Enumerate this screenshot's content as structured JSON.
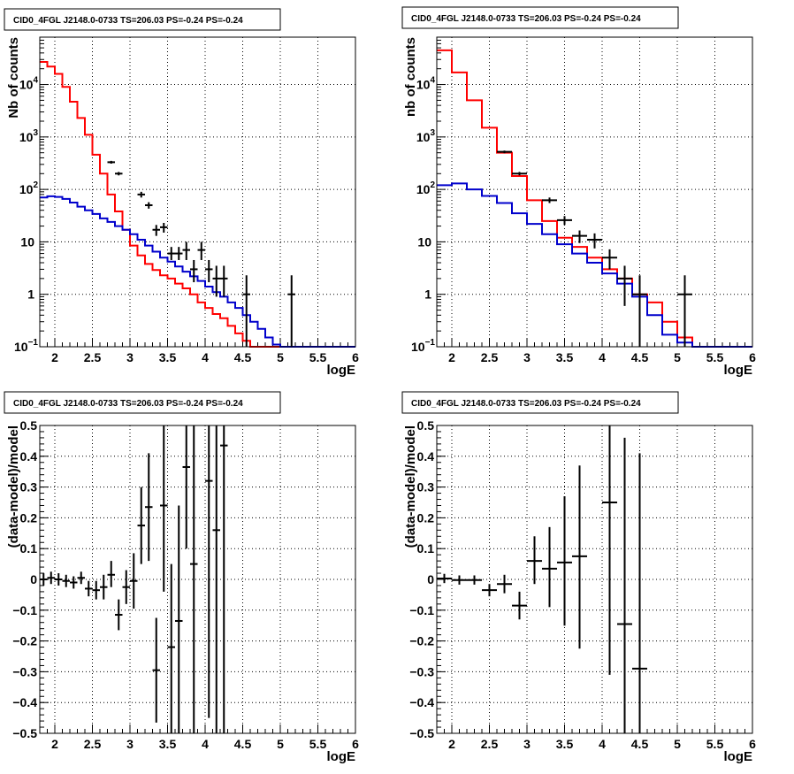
{
  "chart_data": [
    {
      "type": "line",
      "title": "CID0_4FGL J2148.0-0733 TS=206.03 PS=-0.24 PS=-0.24",
      "xlabel": "logE",
      "ylabel": "Nb of counts",
      "xlim": [
        1.8,
        6
      ],
      "ylim": [
        0.1,
        80000
      ],
      "yscale": "log",
      "grid": true,
      "xticks": [
        "2",
        "2.5",
        "3",
        "3.5",
        "4",
        "4.5",
        "5",
        "5.5",
        "6"
      ],
      "yticks": [
        {
          "v": 0.1,
          "base": "10",
          "exp": "−1"
        },
        {
          "v": 1,
          "base": "1",
          "exp": ""
        },
        {
          "v": 10,
          "base": "10",
          "exp": ""
        },
        {
          "v": 100,
          "base": "10",
          "exp": "2"
        },
        {
          "v": 1000,
          "base": "10",
          "exp": "3"
        },
        {
          "v": 10000,
          "base": "10",
          "exp": "4"
        }
      ],
      "bin_edges": [
        1.8,
        1.9,
        2.0,
        2.1,
        2.2,
        2.3,
        2.4,
        2.5,
        2.6,
        2.7,
        2.8,
        2.9,
        3.0,
        3.1,
        3.2,
        3.3,
        3.4,
        3.5,
        3.6,
        3.7,
        3.8,
        3.9,
        4.0,
        4.1,
        4.2,
        4.3,
        4.4,
        4.5,
        4.6,
        4.7,
        4.8,
        4.9,
        5.0,
        5.1,
        5.2,
        5.3,
        5.4,
        5.5,
        5.6,
        5.7,
        5.8,
        5.9,
        6.0
      ],
      "series": [
        {
          "name": "",
          "color": "#ff0000",
          "values": [
            27000,
            22000,
            16000,
            9000,
            4700,
            2300,
            1100,
            460,
            200,
            80,
            38,
            17,
            8.5,
            5.5,
            3.8,
            2.9,
            2.3,
            2.0,
            1.6,
            1.3,
            1.0,
            0.7,
            0.55,
            0.42,
            0.35,
            0.25,
            0.18,
            0.13,
            0.1,
            0.1,
            0.1,
            0.1,
            0.1,
            0.1,
            0.1,
            0.1,
            0.1,
            0.1,
            0.1,
            0.1,
            0.1,
            0.1
          ]
        },
        {
          "name": "",
          "color": "#0000cc",
          "values": [
            70,
            74,
            72,
            66,
            56,
            47,
            40,
            34,
            28,
            24,
            20,
            17,
            14,
            11,
            8.5,
            6.5,
            5.0,
            4.2,
            3.4,
            2.7,
            2.2,
            1.8,
            1.4,
            1.1,
            0.9,
            0.7,
            0.55,
            0.4,
            0.3,
            0.22,
            0.15,
            0.11,
            0.1,
            0.1,
            0.1,
            0.1,
            0.1,
            0.1,
            0.1,
            0.1,
            0.1,
            0.1
          ]
        }
      ],
      "points": [
        {
          "x": 2.75,
          "y": 330,
          "xerr": 0.05,
          "ylo": 310,
          "yhi": 350
        },
        {
          "x": 2.85,
          "y": 200,
          "xerr": 0.05,
          "ylo": 185,
          "yhi": 215
        },
        {
          "x": 3.15,
          "y": 80,
          "xerr": 0.05,
          "ylo": 70,
          "yhi": 90
        },
        {
          "x": 3.25,
          "y": 50,
          "xerr": 0.05,
          "ylo": 43,
          "yhi": 57
        },
        {
          "x": 3.35,
          "y": 17,
          "xerr": 0.05,
          "ylo": 13,
          "yhi": 21
        },
        {
          "x": 3.45,
          "y": 19,
          "xerr": 0.05,
          "ylo": 15,
          "yhi": 23
        },
        {
          "x": 3.55,
          "y": 6,
          "xerr": 0.05,
          "ylo": 4.5,
          "yhi": 8
        },
        {
          "x": 3.65,
          "y": 6,
          "xerr": 0.05,
          "ylo": 4.5,
          "yhi": 8
        },
        {
          "x": 3.75,
          "y": 7,
          "xerr": 0.05,
          "ylo": 4.5,
          "yhi": 10
        },
        {
          "x": 3.85,
          "y": 3,
          "xerr": 0.05,
          "ylo": 1.7,
          "yhi": 4.5
        },
        {
          "x": 3.95,
          "y": 7,
          "xerr": 0.05,
          "ylo": 4.5,
          "yhi": 10
        },
        {
          "x": 4.05,
          "y": 3,
          "xerr": 0.05,
          "ylo": 1.7,
          "yhi": 4.5
        },
        {
          "x": 4.15,
          "y": 2,
          "xerr": 0.05,
          "ylo": 0.9,
          "yhi": 3.5
        },
        {
          "x": 4.25,
          "y": 2,
          "xerr": 0.05,
          "ylo": 0.9,
          "yhi": 3.5
        },
        {
          "x": 4.55,
          "y": 1,
          "xerr": 0.05,
          "ylo": 0.1,
          "yhi": 2.3
        },
        {
          "x": 5.15,
          "y": 1,
          "xerr": 0.05,
          "ylo": 0.1,
          "yhi": 2.3
        }
      ]
    },
    {
      "type": "line",
      "title": "CID0_4FGL J2148.0-0733 TS=206.03 PS=-0.24 PS=-0.24",
      "xlabel": "logE",
      "ylabel": "nb of counts",
      "xlim": [
        1.8,
        6
      ],
      "ylim": [
        0.1,
        80000
      ],
      "yscale": "log",
      "grid": true,
      "xticks": [
        "2",
        "2.5",
        "3",
        "3.5",
        "4",
        "4.5",
        "5",
        "5.5",
        "6"
      ],
      "yticks": [
        {
          "v": 0.1,
          "base": "10",
          "exp": "−1"
        },
        {
          "v": 1,
          "base": "1",
          "exp": ""
        },
        {
          "v": 10,
          "base": "10",
          "exp": ""
        },
        {
          "v": 100,
          "base": "10",
          "exp": "2"
        },
        {
          "v": 1000,
          "base": "10",
          "exp": "3"
        },
        {
          "v": 10000,
          "base": "10",
          "exp": "4"
        }
      ],
      "bin_edges": [
        1.8,
        2.0,
        2.2,
        2.4,
        2.6,
        2.8,
        3.0,
        3.2,
        3.4,
        3.6,
        3.8,
        4.0,
        4.2,
        4.4,
        4.6,
        4.8,
        5.0,
        5.2,
        5.4,
        5.6,
        5.8,
        6.0
      ],
      "series": [
        {
          "name": "",
          "color": "#ff0000",
          "values": [
            45000,
            17000,
            5000,
            1500,
            500,
            180,
            62,
            25,
            12,
            8,
            5,
            3,
            2,
            1,
            0.7,
            0.3,
            0.15,
            0.1,
            0.1,
            0.1,
            0.1
          ]
        },
        {
          "name": "",
          "color": "#0000cc",
          "values": [
            120,
            130,
            100,
            75,
            55,
            35,
            22,
            14,
            9,
            6,
            4,
            2.5,
            1.6,
            0.9,
            0.4,
            0.17,
            0.12,
            0.1,
            0.1,
            0.1,
            0.1
          ]
        }
      ],
      "points": [
        {
          "x": 2.7,
          "y": 520,
          "xerr": 0.1,
          "ylo": 490,
          "yhi": 550
        },
        {
          "x": 2.9,
          "y": 200,
          "xerr": 0.1,
          "ylo": 185,
          "yhi": 215
        },
        {
          "x": 3.3,
          "y": 62,
          "xerr": 0.1,
          "ylo": 55,
          "yhi": 70
        },
        {
          "x": 3.5,
          "y": 26,
          "xerr": 0.1,
          "ylo": 21,
          "yhi": 31
        },
        {
          "x": 3.7,
          "y": 13,
          "xerr": 0.1,
          "ylo": 9.5,
          "yhi": 16.5
        },
        {
          "x": 3.9,
          "y": 11,
          "xerr": 0.1,
          "ylo": 7.5,
          "yhi": 14.5
        },
        {
          "x": 4.1,
          "y": 5,
          "xerr": 0.1,
          "ylo": 3,
          "yhi": 7.2
        },
        {
          "x": 4.3,
          "y": 2,
          "xerr": 0.1,
          "ylo": 0.6,
          "yhi": 3.5
        },
        {
          "x": 4.5,
          "y": 1,
          "xerr": 0.1,
          "ylo": 0.1,
          "yhi": 2.3
        },
        {
          "x": 5.1,
          "y": 1,
          "xerr": 0.1,
          "ylo": 0.1,
          "yhi": 2.3
        }
      ]
    },
    {
      "type": "scatter",
      "title": "CID0_4FGL J2148.0-0733 TS=206.03 PS=-0.24 PS=-0.24",
      "xlabel": "logE",
      "ylabel": "(data-model)/model",
      "xlim": [
        1.8,
        6
      ],
      "ylim": [
        -0.5,
        0.5
      ],
      "yscale": "linear",
      "grid": true,
      "xticks": [
        "2",
        "2.5",
        "3",
        "3.5",
        "4",
        "4.5",
        "5",
        "5.5",
        "6"
      ],
      "yticks": [
        {
          "v": -0.5,
          "label": "−0.5"
        },
        {
          "v": -0.4,
          "label": "−0.4"
        },
        {
          "v": -0.3,
          "label": "−0.3"
        },
        {
          "v": -0.2,
          "label": "−0.2"
        },
        {
          "v": -0.1,
          "label": "−0.1"
        },
        {
          "v": 0,
          "label": "0"
        },
        {
          "v": 0.1,
          "label": "0.1"
        },
        {
          "v": 0.2,
          "label": "0.2"
        },
        {
          "v": 0.3,
          "label": "0.3"
        },
        {
          "v": 0.4,
          "label": "0.4"
        },
        {
          "v": 0.5,
          "label": "0.5"
        }
      ],
      "points": [
        {
          "x": 1.85,
          "y": 0.0,
          "xerr": 0.05,
          "ylo": -0.02,
          "yhi": 0.02
        },
        {
          "x": 1.95,
          "y": 0.005,
          "xerr": 0.05,
          "ylo": -0.015,
          "yhi": 0.025
        },
        {
          "x": 2.05,
          "y": 0.0,
          "xerr": 0.05,
          "ylo": -0.02,
          "yhi": 0.02
        },
        {
          "x": 2.15,
          "y": -0.005,
          "xerr": 0.05,
          "ylo": -0.025,
          "yhi": 0.015
        },
        {
          "x": 2.25,
          "y": -0.01,
          "xerr": 0.05,
          "ylo": -0.03,
          "yhi": 0.01
        },
        {
          "x": 2.35,
          "y": 0.005,
          "xerr": 0.05,
          "ylo": -0.015,
          "yhi": 0.025
        },
        {
          "x": 2.45,
          "y": -0.03,
          "xerr": 0.05,
          "ylo": -0.055,
          "yhi": -0.005
        },
        {
          "x": 2.55,
          "y": -0.035,
          "xerr": 0.05,
          "ylo": -0.065,
          "yhi": -0.005
        },
        {
          "x": 2.65,
          "y": -0.025,
          "xerr": 0.05,
          "ylo": -0.065,
          "yhi": 0.015
        },
        {
          "x": 2.75,
          "y": 0.015,
          "xerr": 0.05,
          "ylo": -0.025,
          "yhi": 0.06
        },
        {
          "x": 2.85,
          "y": -0.115,
          "xerr": 0.05,
          "ylo": -0.165,
          "yhi": -0.065
        },
        {
          "x": 2.95,
          "y": -0.025,
          "xerr": 0.05,
          "ylo": -0.08,
          "yhi": 0.03
        },
        {
          "x": 3.05,
          "y": -0.005,
          "xerr": 0.05,
          "ylo": -0.095,
          "yhi": 0.085
        },
        {
          "x": 3.15,
          "y": 0.175,
          "xerr": 0.05,
          "ylo": 0.05,
          "yhi": 0.3
        },
        {
          "x": 3.25,
          "y": 0.235,
          "xerr": 0.05,
          "ylo": 0.06,
          "yhi": 0.41
        },
        {
          "x": 3.35,
          "y": -0.295,
          "xerr": 0.05,
          "ylo": -0.465,
          "yhi": -0.125
        },
        {
          "x": 3.45,
          "y": 0.24,
          "xerr": 0.05,
          "ylo": -0.04,
          "yhi": 0.5
        },
        {
          "x": 3.55,
          "y": -0.22,
          "xerr": 0.05,
          "ylo": -0.5,
          "yhi": 0.05
        },
        {
          "x": 3.65,
          "y": -0.135,
          "xerr": 0.05,
          "ylo": -0.5,
          "yhi": 0.24
        },
        {
          "x": 3.75,
          "y": 0.365,
          "xerr": 0.05,
          "ylo": 0.1,
          "yhi": 0.5
        },
        {
          "x": 3.85,
          "y": 0.05,
          "xerr": 0.05,
          "ylo": -0.5,
          "yhi": 0.5
        },
        {
          "x": 4.05,
          "y": 0.32,
          "xerr": 0.05,
          "ylo": -0.45,
          "yhi": 0.5
        },
        {
          "x": 4.15,
          "y": 0.16,
          "xerr": 0.05,
          "ylo": -0.5,
          "yhi": 0.5
        },
        {
          "x": 4.25,
          "y": 0.435,
          "xerr": 0.05,
          "ylo": -0.5,
          "yhi": 0.5
        }
      ]
    },
    {
      "type": "scatter",
      "title": "CID0_4FGL J2148.0-0733 TS=206.03 PS=-0.24 PS=-0.24",
      "xlabel": "logE",
      "ylabel": "(data-model)/model",
      "xlim": [
        1.8,
        6
      ],
      "ylim": [
        -0.5,
        0.5
      ],
      "yscale": "linear",
      "grid": true,
      "xticks": [
        "2",
        "2.5",
        "3",
        "3.5",
        "4",
        "4.5",
        "5",
        "5.5",
        "6"
      ],
      "yticks": [
        {
          "v": -0.5,
          "label": "−0.5"
        },
        {
          "v": -0.4,
          "label": "−0.4"
        },
        {
          "v": -0.3,
          "label": "−0.3"
        },
        {
          "v": -0.2,
          "label": "−0.2"
        },
        {
          "v": -0.1,
          "label": "−0.1"
        },
        {
          "v": 0,
          "label": "0"
        },
        {
          "v": 0.1,
          "label": "0.1"
        },
        {
          "v": 0.2,
          "label": "0.2"
        },
        {
          "v": 0.3,
          "label": "0.3"
        },
        {
          "v": 0.4,
          "label": "0.4"
        },
        {
          "v": 0.5,
          "label": "0.5"
        }
      ],
      "points": [
        {
          "x": 1.9,
          "y": 0.003,
          "xerr": 0.1,
          "ylo": -0.012,
          "yhi": 0.018
        },
        {
          "x": 2.1,
          "y": -0.002,
          "xerr": 0.1,
          "ylo": -0.017,
          "yhi": 0.013
        },
        {
          "x": 2.3,
          "y": -0.002,
          "xerr": 0.1,
          "ylo": -0.017,
          "yhi": 0.013
        },
        {
          "x": 2.5,
          "y": -0.035,
          "xerr": 0.1,
          "ylo": -0.055,
          "yhi": -0.015
        },
        {
          "x": 2.7,
          "y": -0.015,
          "xerr": 0.1,
          "ylo": -0.045,
          "yhi": 0.015
        },
        {
          "x": 2.9,
          "y": -0.085,
          "xerr": 0.1,
          "ylo": -0.13,
          "yhi": -0.04
        },
        {
          "x": 3.1,
          "y": 0.06,
          "xerr": 0.1,
          "ylo": -0.015,
          "yhi": 0.14
        },
        {
          "x": 3.3,
          "y": 0.035,
          "xerr": 0.1,
          "ylo": -0.09,
          "yhi": 0.17
        },
        {
          "x": 3.5,
          "y": 0.055,
          "xerr": 0.1,
          "ylo": -0.15,
          "yhi": 0.27
        },
        {
          "x": 3.7,
          "y": 0.075,
          "xerr": 0.1,
          "ylo": -0.225,
          "yhi": 0.37
        },
        {
          "x": 4.1,
          "y": 0.25,
          "xerr": 0.1,
          "ylo": -0.31,
          "yhi": 0.5
        },
        {
          "x": 4.3,
          "y": -0.145,
          "xerr": 0.1,
          "ylo": -0.5,
          "yhi": 0.46
        },
        {
          "x": 4.5,
          "y": -0.29,
          "xerr": 0.1,
          "ylo": -0.5,
          "yhi": 0.41
        }
      ]
    }
  ]
}
